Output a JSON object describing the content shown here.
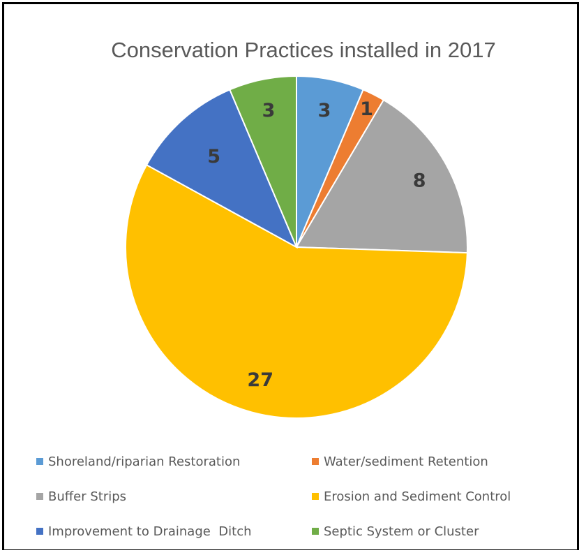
{
  "chart_data": {
    "type": "pie",
    "title": "Conservation Practices installed in 2017",
    "categories": [
      "Shoreland/riparian Restoration",
      "Water/sediment Retention",
      "Buffer Strips",
      "Erosion and Sediment Control",
      "Improvement to Drainage  Ditch",
      "Septic System or Cluster"
    ],
    "values": [
      3,
      1,
      8,
      27,
      5,
      3
    ],
    "colors": [
      "#5b9bd5",
      "#ed7d31",
      "#a5a5a5",
      "#ffc000",
      "#4472c4",
      "#70ad47"
    ],
    "data_labels": [
      "3",
      "1",
      "8",
      "27",
      "5",
      "3"
    ],
    "legend_position": "bottom"
  }
}
